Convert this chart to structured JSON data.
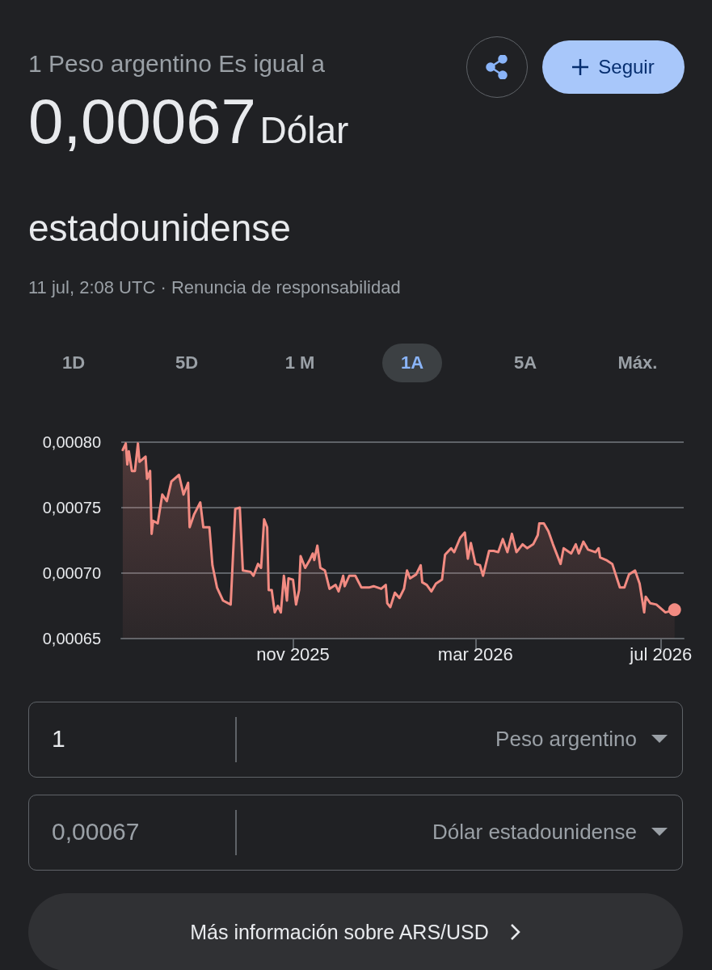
{
  "chart_data": {
    "type": "area",
    "title": "1 Peso argentino Es igual a",
    "subtitle": "0,00067",
    "annotations": [
      "Dólar estadounidense",
      "11 jul, 2:08 UTC · Renuncia de responsabilidad",
      "Seguir",
      "1D",
      "5D",
      "1 M",
      "1A",
      "5A",
      "Máx.",
      "1",
      "Peso argentino",
      "0,00067",
      "Dólar estadounidense",
      "Más información sobre ARS/USD"
    ],
    "x": [
      "2025-07-12",
      "2025-07-14",
      "2025-07-15",
      "2025-07-16",
      "2025-07-18",
      "2025-07-20",
      "2025-07-22",
      "2025-07-23",
      "2025-07-27",
      "2025-07-28",
      "2025-07-30",
      "2025-07-31",
      "2025-08-01",
      "2025-08-04",
      "2025-08-07",
      "2025-08-10",
      "2025-08-13",
      "2025-08-18",
      "2025-08-21",
      "2025-08-24",
      "2025-08-25",
      "2025-08-28",
      "2025-09-01",
      "2025-09-03",
      "2025-09-07",
      "2025-09-09",
      "2025-09-12",
      "2025-09-16",
      "2025-09-21",
      "2025-09-24",
      "2025-09-27",
      "2025-09-29",
      "2025-10-04",
      "2025-10-06",
      "2025-10-09",
      "2025-10-11",
      "2025-10-13",
      "2025-10-15",
      "2025-10-16",
      "2025-10-18",
      "2025-10-20",
      "2025-10-22",
      "2025-10-24",
      "2025-10-26",
      "2025-10-28",
      "2025-10-29",
      "2025-11-01",
      "2025-11-03",
      "2025-11-05",
      "2025-11-06",
      "2025-11-09",
      "2025-11-12",
      "2025-11-14",
      "2025-11-15",
      "2025-11-17",
      "2025-11-19",
      "2025-11-22",
      "2025-11-25",
      "2025-11-29",
      "2025-12-01",
      "2025-12-04",
      "2025-12-05",
      "2025-12-08",
      "2025-12-12",
      "2025-12-16",
      "2025-12-21",
      "2025-12-24",
      "2025-12-29",
      "2026-01-01",
      "2026-01-02",
      "2026-01-04",
      "2026-01-07",
      "2026-01-10",
      "2026-01-13",
      "2026-01-15",
      "2026-01-17",
      "2026-01-21",
      "2026-01-24",
      "2026-01-25",
      "2026-01-28",
      "2026-01-31",
      "2026-02-03",
      "2026-02-07",
      "2026-02-09",
      "2026-02-13",
      "2026-02-15",
      "2026-02-19",
      "2026-02-22",
      "2026-02-24",
      "2026-02-26",
      "2026-03-01",
      "2026-03-04",
      "2026-03-06",
      "2026-03-10",
      "2026-03-13",
      "2026-03-16",
      "2026-03-19",
      "2026-03-22",
      "2026-03-25",
      "2026-03-28",
      "2026-04-01",
      "2026-04-04",
      "2026-04-08",
      "2026-04-11",
      "2026-04-12",
      "2026-04-15",
      "2026-04-18",
      "2026-04-21",
      "2026-04-26",
      "2026-04-28",
      "2026-05-03",
      "2026-05-06",
      "2026-05-08",
      "2026-05-11",
      "2026-05-14",
      "2026-05-19",
      "2026-05-21",
      "2026-05-22",
      "2026-05-26",
      "2026-05-30",
      "2026-06-04",
      "2026-06-07",
      "2026-06-10",
      "2026-06-14",
      "2026-06-17",
      "2026-06-20",
      "2026-06-21",
      "2026-06-24",
      "2026-06-28",
      "2026-07-04",
      "2026-07-10"
    ],
    "series": [
      {
        "color": "#f28b82",
        "values": [
          0.000794,
          0.000799,
          0.000783,
          0.000793,
          0.000778,
          0.000778,
          0.000799,
          0.000785,
          0.000789,
          0.000772,
          0.000778,
          0.00073,
          0.00074,
          0.000738,
          0.00076,
          0.000755,
          0.00077,
          0.000775,
          0.00076,
          0.000769,
          0.000735,
          0.000745,
          0.000754,
          0.000735,
          0.000735,
          0.000706,
          0.000689,
          0.000679,
          0.000676,
          0.000749,
          0.00075,
          0.000702,
          0.000701,
          0.000698,
          0.000707,
          0.000704,
          0.000741,
          0.000735,
          0.000687,
          0.000687,
          0.00067,
          0.000675,
          0.00067,
          0.000698,
          0.000679,
          0.000696,
          0.000695,
          0.000676,
          0.000687,
          0.000713,
          0.000704,
          0.00071,
          0.000715,
          0.00071,
          0.000721,
          0.000704,
          0.000702,
          0.000688,
          0.000691,
          0.000686,
          0.000698,
          0.00069,
          0.000698,
          0.000698,
          0.000689,
          0.000689,
          0.00069,
          0.000688,
          0.000691,
          0.000677,
          0.000674,
          0.000685,
          0.000681,
          0.000688,
          0.000702,
          0.000696,
          0.000699,
          0.000706,
          0.000693,
          0.000691,
          0.000686,
          0.000692,
          0.000695,
          0.000714,
          0.000719,
          0.000716,
          0.000727,
          0.000731,
          0.000711,
          0.000723,
          0.000707,
          0.000706,
          0.000698,
          0.000717,
          0.000717,
          0.000716,
          0.000726,
          0.000716,
          0.00073,
          0.000716,
          0.000722,
          0.000719,
          0.000722,
          0.000729,
          0.000738,
          0.000738,
          0.000732,
          0.000722,
          0.000707,
          0.000719,
          0.000715,
          0.000722,
          0.000715,
          0.000724,
          0.000718,
          0.000716,
          0.000719,
          0.000712,
          0.00071,
          0.000707,
          0.000689,
          0.000689,
          0.000699,
          0.000702,
          0.000692,
          0.00067,
          0.000682,
          0.000677,
          0.000676,
          0.00067,
          0.000672
        ]
      }
    ],
    "xlim": [
      "2025-07-11",
      "2026-07-16"
    ],
    "xticks": [
      {
        "value": "2025-11-01",
        "label": "nov 2025"
      },
      {
        "value": "2026-03-01",
        "label": "mar 2026"
      },
      {
        "value": "2026-07-01",
        "label": "jul 2026"
      }
    ],
    "ylim": [
      0.00065,
      0.0008
    ],
    "yticks": [
      {
        "value": 0.00065,
        "label": "0,00065"
      },
      {
        "value": 0.0007,
        "label": "0,00070"
      },
      {
        "value": 0.00075,
        "label": "0,00075"
      },
      {
        "value": 0.0008,
        "label": "0,00080"
      }
    ],
    "grid": "y",
    "line_style": "solid"
  }
}
